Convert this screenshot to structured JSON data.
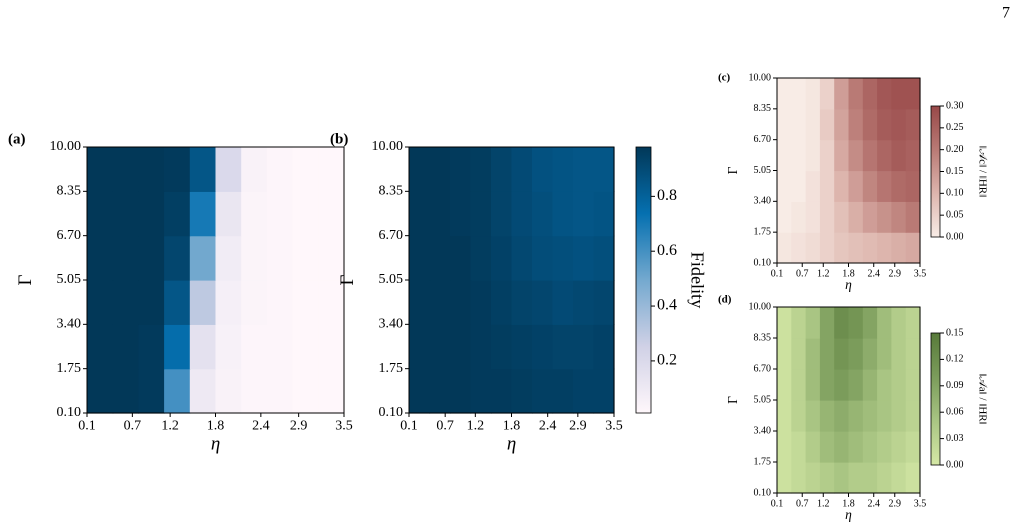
{
  "page_number": "7",
  "chart_data": [
    {
      "type": "heatmap",
      "label": "(a)",
      "xlabel": "η",
      "ylabel": "Γ",
      "xlim": [
        0.1,
        3.5
      ],
      "ylim": [
        0.1,
        10
      ],
      "xticks": [
        0.1,
        0.7,
        1.2,
        1.8,
        2.4,
        2.9,
        3.5
      ],
      "yticks": [
        {
          "value": 0.1,
          "label": "0.10"
        },
        {
          "value": 1.75,
          "label": "1.75"
        },
        {
          "value": 3.4,
          "label": "3.40"
        },
        {
          "value": 5.05,
          "label": "5.05"
        },
        {
          "value": 6.7,
          "label": "6.70"
        },
        {
          "value": 8.35,
          "label": "8.35"
        },
        {
          "value": 10,
          "label": "10.00"
        }
      ],
      "x": [
        0.27,
        0.61,
        0.95,
        1.29,
        1.63,
        1.97,
        2.31,
        2.65,
        2.99,
        3.33
      ],
      "y": [
        0.925,
        2.575,
        4.225,
        5.875,
        7.525,
        9.175
      ],
      "z": [
        [
          0.98,
          0.98,
          0.97,
          0.6,
          0.1,
          0.04,
          0.02,
          0.02,
          0.01,
          0.01
        ],
        [
          0.98,
          0.98,
          0.97,
          0.75,
          0.15,
          0.05,
          0.02,
          0.02,
          0.01,
          0.01
        ],
        [
          0.98,
          0.98,
          0.98,
          0.85,
          0.3,
          0.06,
          0.03,
          0.02,
          0.01,
          0.01
        ],
        [
          0.98,
          0.98,
          0.98,
          0.92,
          0.5,
          0.08,
          0.03,
          0.02,
          0.01,
          0.01
        ],
        [
          0.98,
          0.98,
          0.98,
          0.95,
          0.7,
          0.12,
          0.03,
          0.02,
          0.01,
          0.01
        ],
        [
          0.98,
          0.98,
          0.98,
          0.97,
          0.85,
          0.2,
          0.04,
          0.02,
          0.01,
          0.01
        ]
      ],
      "colormap": [
        "#fff7fb",
        "#d0d1e6",
        "#74a9cf",
        "#0570b0",
        "#023858"
      ],
      "zlim": [
        0.01,
        0.98
      ]
    },
    {
      "type": "heatmap",
      "label": "(b)",
      "xlabel": "η",
      "ylabel": "Γ",
      "xlim": [
        0.1,
        3.5
      ],
      "ylim": [
        0.1,
        10
      ],
      "xticks": [
        0.1,
        0.7,
        1.2,
        1.8,
        2.4,
        2.9,
        3.5
      ],
      "yticks": [
        {
          "value": 0.1,
          "label": "0.10"
        },
        {
          "value": 1.75,
          "label": "1.75"
        },
        {
          "value": 3.4,
          "label": "3.40"
        },
        {
          "value": 5.05,
          "label": "5.05"
        },
        {
          "value": 6.7,
          "label": "6.70"
        },
        {
          "value": 8.35,
          "label": "8.35"
        },
        {
          "value": 10,
          "label": "10.00"
        }
      ],
      "x": [
        0.27,
        0.61,
        0.95,
        1.29,
        1.63,
        1.97,
        2.31,
        2.65,
        2.99,
        3.33
      ],
      "y": [
        0.925,
        2.575,
        4.225,
        5.875,
        7.525,
        9.175
      ],
      "z": [
        [
          0.98,
          0.98,
          0.98,
          0.97,
          0.97,
          0.96,
          0.95,
          0.95,
          0.94,
          0.94
        ],
        [
          0.98,
          0.98,
          0.98,
          0.97,
          0.96,
          0.95,
          0.94,
          0.93,
          0.93,
          0.94
        ],
        [
          0.98,
          0.98,
          0.98,
          0.97,
          0.95,
          0.93,
          0.92,
          0.9,
          0.91,
          0.92
        ],
        [
          0.98,
          0.98,
          0.98,
          0.96,
          0.94,
          0.91,
          0.89,
          0.88,
          0.87,
          0.88
        ],
        [
          0.98,
          0.98,
          0.97,
          0.96,
          0.93,
          0.9,
          0.88,
          0.86,
          0.85,
          0.86
        ],
        [
          0.98,
          0.98,
          0.97,
          0.96,
          0.93,
          0.9,
          0.87,
          0.86,
          0.85,
          0.85
        ]
      ],
      "colormap": [
        "#fff7fb",
        "#d0d1e6",
        "#74a9cf",
        "#0570b0",
        "#023858"
      ],
      "zlim": [
        0.01,
        0.98
      ],
      "colorbar": {
        "label": "Fidelity",
        "ticks": [
          0.2,
          0.4,
          0.6,
          0.8
        ]
      }
    },
    {
      "type": "heatmap",
      "label": "(c)",
      "xlabel": "η",
      "ylabel": "Γ",
      "xlim": [
        0.1,
        3.5
      ],
      "ylim": [
        0.1,
        10
      ],
      "xticks": [
        0.1,
        0.7,
        1.2,
        1.8,
        2.4,
        2.9,
        3.5
      ],
      "yticks": [
        {
          "value": 0.1,
          "label": "0.10"
        },
        {
          "value": 1.75,
          "label": "1.75"
        },
        {
          "value": 3.4,
          "label": "3.40"
        },
        {
          "value": 5.05,
          "label": "5.05"
        },
        {
          "value": 6.7,
          "label": "6.70"
        },
        {
          "value": 8.35,
          "label": "8.35"
        },
        {
          "value": 10,
          "label": "10.00"
        }
      ],
      "x": [
        0.27,
        0.61,
        0.95,
        1.29,
        1.63,
        1.97,
        2.31,
        2.65,
        2.99,
        3.33
      ],
      "y": [
        0.925,
        2.575,
        4.225,
        5.875,
        7.525,
        9.175
      ],
      "z": [
        [
          0.01,
          0.02,
          0.03,
          0.05,
          0.07,
          0.08,
          0.09,
          0.1,
          0.11,
          0.12
        ],
        [
          0.0,
          0.01,
          0.02,
          0.05,
          0.08,
          0.11,
          0.14,
          0.16,
          0.18,
          0.2
        ],
        [
          0.0,
          0.0,
          0.02,
          0.05,
          0.1,
          0.14,
          0.18,
          0.21,
          0.23,
          0.24
        ],
        [
          0.0,
          0.0,
          0.01,
          0.05,
          0.12,
          0.17,
          0.21,
          0.24,
          0.26,
          0.25
        ],
        [
          0.0,
          0.0,
          0.01,
          0.06,
          0.13,
          0.19,
          0.23,
          0.26,
          0.27,
          0.26
        ],
        [
          0.0,
          0.0,
          0.01,
          0.05,
          0.14,
          0.2,
          0.24,
          0.27,
          0.28,
          0.28
        ]
      ],
      "colormap": [
        "#f8ece6",
        "#ddb5ad",
        "#b97a75",
        "#984848"
      ],
      "zlim": [
        0,
        0.3
      ],
      "colorbar": {
        "label": "‖𝒜c‖ / ‖HR‖",
        "ticks": [
          {
            "value": 0,
            "label": "0.00"
          },
          {
            "value": 0.05,
            "label": "0.05"
          },
          {
            "value": 0.1,
            "label": "0.10"
          },
          {
            "value": 0.15,
            "label": "0.15"
          },
          {
            "value": 0.2,
            "label": "0.20"
          },
          {
            "value": 0.25,
            "label": "0.25"
          },
          {
            "value": 0.3,
            "label": "0.30"
          }
        ]
      }
    },
    {
      "type": "heatmap",
      "label": "(d)",
      "xlabel": "η",
      "ylabel": "Γ",
      "xlim": [
        0.1,
        3.5
      ],
      "ylim": [
        0.1,
        10
      ],
      "xticks": [
        0.1,
        0.7,
        1.2,
        1.8,
        2.4,
        2.9,
        3.5
      ],
      "yticks": [
        {
          "value": 0.1,
          "label": "0.10"
        },
        {
          "value": 1.75,
          "label": "1.75"
        },
        {
          "value": 3.4,
          "label": "3.40"
        },
        {
          "value": 5.05,
          "label": "5.05"
        },
        {
          "value": 6.7,
          "label": "6.70"
        },
        {
          "value": 8.35,
          "label": "8.35"
        },
        {
          "value": 10,
          "label": "10.00"
        }
      ],
      "x": [
        0.27,
        0.61,
        0.95,
        1.29,
        1.63,
        1.97,
        2.31,
        2.65,
        2.99,
        3.33
      ],
      "y": [
        0.925,
        2.575,
        4.225,
        5.875,
        7.525,
        9.175
      ],
      "z": [
        [
          0.01,
          0.02,
          0.03,
          0.04,
          0.05,
          0.04,
          0.04,
          0.03,
          0.02,
          0.01
        ],
        [
          0.01,
          0.02,
          0.04,
          0.06,
          0.07,
          0.06,
          0.05,
          0.04,
          0.03,
          0.02
        ],
        [
          0.01,
          0.03,
          0.05,
          0.07,
          0.08,
          0.07,
          0.06,
          0.05,
          0.04,
          0.03
        ],
        [
          0.01,
          0.03,
          0.06,
          0.09,
          0.1,
          0.09,
          0.07,
          0.05,
          0.04,
          0.03
        ],
        [
          0.01,
          0.03,
          0.06,
          0.09,
          0.11,
          0.1,
          0.08,
          0.06,
          0.04,
          0.03
        ],
        [
          0.01,
          0.03,
          0.05,
          0.09,
          0.12,
          0.11,
          0.09,
          0.06,
          0.04,
          0.03
        ]
      ],
      "colormap": [
        "#d5e8a6",
        "#a9c583",
        "#7b9c5b",
        "#587a3a"
      ],
      "zlim": [
        0,
        0.15
      ],
      "colorbar": {
        "label": "‖𝒜a‖ / ‖HR‖",
        "ticks": [
          {
            "value": 0,
            "label": "0.00"
          },
          {
            "value": 0.03,
            "label": "0.03"
          },
          {
            "value": 0.06,
            "label": "0.06"
          },
          {
            "value": 0.09,
            "label": "0.09"
          },
          {
            "value": 0.12,
            "label": "0.12"
          },
          {
            "value": 0.15,
            "label": "0.15"
          }
        ]
      }
    }
  ]
}
